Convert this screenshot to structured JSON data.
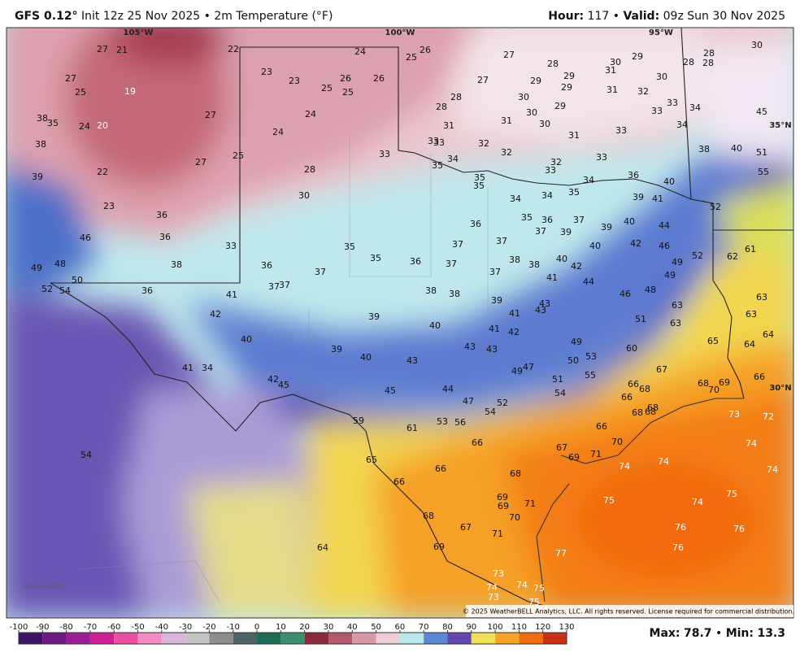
{
  "header": {
    "model": "GFS 0.12°",
    "description": "Init 12z 25 Nov 2025",
    "separator": "•",
    "field": "2m Temperature (°F)",
    "hour_label": "Hour:",
    "hour": "117",
    "valid_label": "Valid:",
    "valid": "09z Sun 30 Nov 2025"
  },
  "map": {
    "longitudes": [
      "105°W",
      "100°W",
      "95°W"
    ],
    "latitudes": [
      "35°N",
      "30°N"
    ],
    "points": [
      27,
      21,
      22,
      24,
      25,
      26,
      27,
      28,
      30,
      29,
      31,
      28,
      28,
      28,
      30,
      27,
      25,
      19,
      23,
      23,
      25,
      26,
      26,
      25,
      27,
      29,
      29,
      29,
      30,
      31,
      32,
      24,
      27,
      28,
      28,
      30,
      30,
      29,
      33,
      33,
      34,
      45,
      38,
      35,
      24,
      20,
      24,
      31,
      31,
      30,
      31,
      33,
      34,
      38,
      33,
      33,
      33,
      32,
      32,
      33,
      38,
      40,
      51,
      39,
      22,
      27,
      25,
      28,
      35,
      34,
      32,
      33,
      34,
      36,
      40,
      55,
      30,
      35,
      35,
      34,
      34,
      35,
      39,
      41,
      52,
      23,
      36,
      36,
      35,
      36,
      37,
      39,
      40,
      44,
      46,
      36,
      37,
      39,
      42,
      46,
      61,
      33,
      35,
      37,
      37,
      40,
      49,
      48,
      38,
      36,
      35,
      36,
      37,
      38,
      38,
      40,
      42,
      49,
      52,
      62,
      37,
      37,
      41,
      44,
      49,
      52,
      54,
      50,
      36,
      37,
      37,
      38,
      38,
      46,
      48,
      63,
      41,
      39,
      43,
      43,
      63,
      63,
      42,
      39,
      41,
      51,
      63,
      40,
      40,
      41,
      42,
      64,
      65,
      39,
      43,
      43,
      49,
      60,
      64,
      40,
      43,
      50,
      53,
      41,
      34,
      49,
      47,
      67,
      42,
      45,
      51,
      55,
      66,
      68,
      69,
      45,
      44,
      54,
      66,
      68,
      70,
      47,
      52,
      66,
      54,
      68,
      68,
      68,
      73,
      72,
      59,
      61,
      53,
      56,
      66,
      54,
      66,
      70,
      74,
      67,
      69,
      71,
      65,
      66,
      74,
      74,
      74,
      68,
      66,
      69,
      69,
      71,
      75,
      74,
      75,
      68,
      70,
      67,
      71,
      76,
      76,
      64,
      69,
      76,
      77,
      73,
      74,
      74,
      75,
      73,
      75
    ],
    "copyright": "© 2025 WeatherBELL Analytics, LLC. All rights reserved. License required for commercial distribution.",
    "logo": "WeatherBELL"
  },
  "colorbar": {
    "ticks": [
      -100,
      -90,
      -80,
      -70,
      -60,
      -50,
      -40,
      -30,
      -20,
      -10,
      0,
      10,
      20,
      30,
      40,
      50,
      60,
      70,
      80,
      90,
      100,
      110,
      120,
      130
    ]
  },
  "stats": {
    "max_label": "Max:",
    "max": 78.7,
    "separator": "•",
    "min_label": "Min:",
    "min": 13.3
  }
}
